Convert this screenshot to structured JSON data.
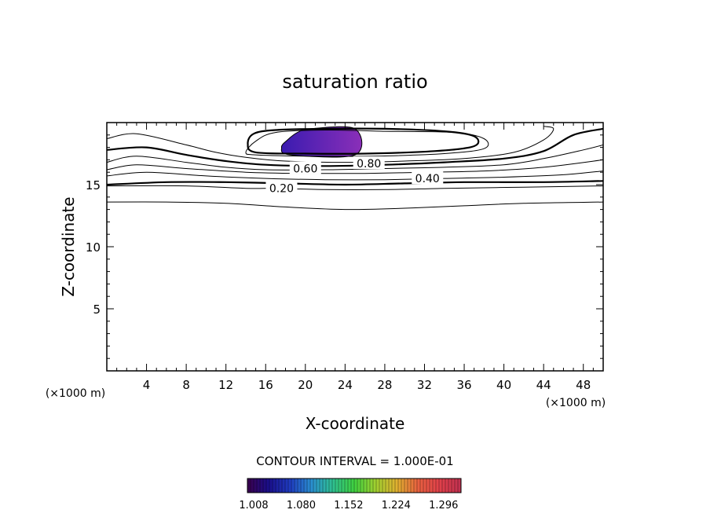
{
  "chart_data": {
    "type": "contour",
    "title": "saturation ratio",
    "xlabel": "X-coordinate",
    "ylabel": "Z-coordinate",
    "x_unit_label": "(×1000 m)",
    "y_unit_label": "(×1000 m)",
    "xlim": [
      0,
      50
    ],
    "ylim": [
      0,
      20
    ],
    "x_ticks": [
      4,
      8,
      12,
      16,
      20,
      24,
      28,
      32,
      36,
      40,
      44,
      48
    ],
    "y_ticks": [
      5,
      10,
      15
    ],
    "contour_interval_label": "CONTOUR INTERVAL = 1.000E-01",
    "contour_labels": [
      {
        "text": "0.80",
        "x": 26.4,
        "y": 16.7
      },
      {
        "text": "0.60",
        "x": 20.0,
        "y": 16.3
      },
      {
        "text": "0.40",
        "x": 32.3,
        "y": 15.5
      },
      {
        "text": "0.20",
        "x": 17.6,
        "y": 14.7
      }
    ],
    "contours": [
      {
        "level": 0.1,
        "bold": false,
        "points": [
          [
            0,
            13.6
          ],
          [
            6,
            13.6
          ],
          [
            12,
            13.5
          ],
          [
            18,
            13.2
          ],
          [
            24,
            13.0
          ],
          [
            30,
            13.1
          ],
          [
            36,
            13.3
          ],
          [
            42,
            13.5
          ],
          [
            50,
            13.6
          ]
        ]
      },
      {
        "level": 0.2,
        "bold": false,
        "points": [
          [
            0,
            14.9
          ],
          [
            8,
            14.9
          ],
          [
            14,
            14.7
          ],
          [
            17,
            14.7
          ],
          [
            22,
            14.6
          ],
          [
            28,
            14.6
          ],
          [
            34,
            14.7
          ],
          [
            42,
            14.8
          ],
          [
            50,
            14.9
          ]
        ]
      },
      {
        "level": 0.3,
        "bold": true,
        "points": [
          [
            0,
            15.0
          ],
          [
            6,
            15.2
          ],
          [
            12,
            15.2
          ],
          [
            18,
            15.1
          ],
          [
            24,
            15.0
          ],
          [
            30,
            15.1
          ],
          [
            36,
            15.2
          ],
          [
            44,
            15.2
          ],
          [
            50,
            15.3
          ]
        ]
      },
      {
        "level": 0.4,
        "bold": false,
        "points": [
          [
            0,
            15.7
          ],
          [
            4,
            16.0
          ],
          [
            10,
            15.7
          ],
          [
            16,
            15.5
          ],
          [
            22,
            15.4
          ],
          [
            28,
            15.4
          ],
          [
            34,
            15.5
          ],
          [
            40,
            15.6
          ],
          [
            46,
            15.8
          ],
          [
            50,
            16.1
          ]
        ]
      },
      {
        "level": 0.5,
        "bold": false,
        "points": [
          [
            0,
            16.2
          ],
          [
            3,
            16.6
          ],
          [
            8,
            16.3
          ],
          [
            14,
            16.0
          ],
          [
            20,
            15.9
          ],
          [
            26,
            15.9
          ],
          [
            32,
            16.0
          ],
          [
            38,
            16.1
          ],
          [
            44,
            16.4
          ],
          [
            50,
            17.0
          ]
        ]
      },
      {
        "level": 0.6,
        "bold": false,
        "points": [
          [
            0,
            16.8
          ],
          [
            3,
            17.3
          ],
          [
            8,
            16.8
          ],
          [
            12,
            16.4
          ],
          [
            16,
            16.2
          ],
          [
            22,
            16.2
          ],
          [
            28,
            16.3
          ],
          [
            34,
            16.4
          ],
          [
            40,
            16.6
          ],
          [
            44,
            17.1
          ],
          [
            48,
            17.8
          ],
          [
            50,
            18.2
          ]
        ]
      },
      {
        "level": 0.7,
        "bold": true,
        "points": [
          [
            0,
            17.8
          ],
          [
            4,
            18.0
          ],
          [
            8,
            17.4
          ],
          [
            12,
            16.9
          ],
          [
            16,
            16.6
          ],
          [
            22,
            16.5
          ],
          [
            28,
            16.6
          ],
          [
            34,
            16.8
          ],
          [
            40,
            17.1
          ],
          [
            44,
            17.7
          ],
          [
            47,
            19.0
          ],
          [
            50,
            19.5
          ]
        ]
      },
      {
        "level": 0.8,
        "bold": false,
        "points": [
          [
            0,
            18.7
          ],
          [
            3,
            19.1
          ],
          [
            8,
            18.2
          ],
          [
            11,
            17.6
          ],
          [
            14,
            17.2
          ],
          [
            18,
            16.9
          ],
          [
            24,
            16.8
          ],
          [
            30,
            16.9
          ],
          [
            36,
            17.1
          ],
          [
            41,
            17.6
          ],
          [
            44,
            18.6
          ],
          [
            45,
            19.5
          ],
          [
            44,
            19.7
          ]
        ]
      },
      {
        "level": 0.9,
        "bold": false,
        "closed": true,
        "points": [
          [
            14,
            17.6
          ],
          [
            15,
            18.5
          ],
          [
            17,
            19.2
          ],
          [
            22,
            19.4
          ],
          [
            28,
            19.3
          ],
          [
            35,
            19.2
          ],
          [
            38,
            18.7
          ],
          [
            38,
            17.9
          ],
          [
            34,
            17.5
          ],
          [
            27,
            17.3
          ],
          [
            20,
            17.3
          ],
          [
            15,
            17.4
          ]
        ]
      },
      {
        "level": 0.95,
        "bold": true,
        "closed": true,
        "points": [
          [
            14.2,
            18.3
          ],
          [
            14.8,
            19.1
          ],
          [
            17,
            19.4
          ],
          [
            22,
            19.5
          ],
          [
            28,
            19.5
          ],
          [
            34,
            19.3
          ],
          [
            37,
            18.9
          ],
          [
            37,
            18.1
          ],
          [
            33,
            17.7
          ],
          [
            26,
            17.5
          ],
          [
            20,
            17.5
          ],
          [
            15,
            17.6
          ]
        ]
      },
      {
        "level": 1.0,
        "bold": false,
        "closed": true,
        "points": [
          [
            17.6,
            18.0
          ],
          [
            18.2,
            18.6
          ],
          [
            19.2,
            19.2
          ],
          [
            20.5,
            19.5
          ],
          [
            25,
            19.5
          ],
          [
            25,
            17.4
          ],
          [
            18.5,
            17.4
          ]
        ]
      }
    ],
    "shaded_region": {
      "x": [
        17.6,
        25.0
      ],
      "y": [
        17.4,
        19.5
      ],
      "color_start": "#3a1bb0",
      "color_end": "#8a2fb8"
    },
    "colorbar": {
      "ticks": [
        1.008,
        1.08,
        1.152,
        1.224,
        1.296
      ],
      "tick_labels": [
        "1.008",
        "1.080",
        "1.152",
        "1.224",
        "1.296"
      ],
      "min": 1.008,
      "max": 1.332,
      "colors": [
        "#3a004d",
        "#1a0f8c",
        "#1f3cc0",
        "#2a8fd0",
        "#2fc090",
        "#3fd040",
        "#a0d030",
        "#e0b030",
        "#e86040",
        "#e0404a",
        "#c03050"
      ]
    }
  }
}
